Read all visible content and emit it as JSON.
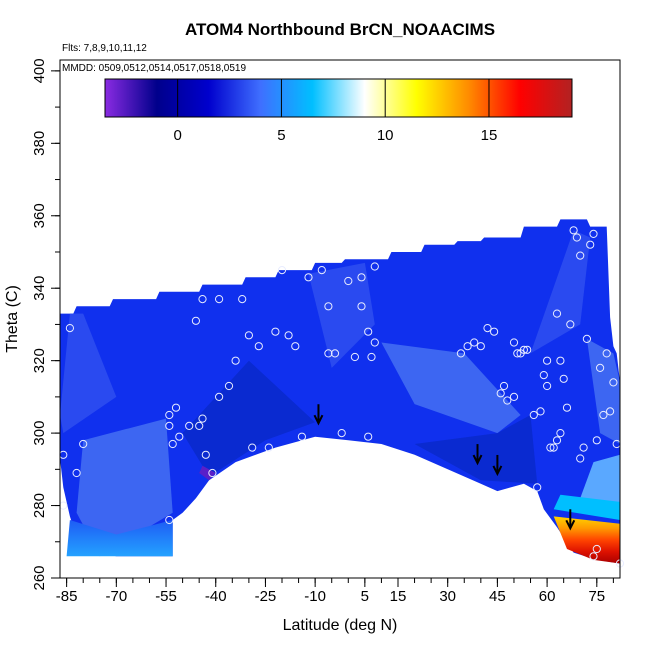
{
  "chart_data": {
    "type": "heatmap",
    "title": "ATOM4 Northbound BrCN_NOAACIMS",
    "subtitle_flights": "Flts: 7,8,9,10,11,12",
    "subtitle_dates": "MMDD: 0509,0512,0514,0517,0518,0519",
    "xlabel": "Latitude (deg N)",
    "ylabel": "Theta (C)",
    "xlim": [
      -87,
      82
    ],
    "ylim": [
      260,
      403
    ],
    "xticks": [
      -85,
      -70,
      -55,
      -40,
      -25,
      -10,
      5,
      15,
      30,
      45,
      60,
      75
    ],
    "yticks": [
      260,
      280,
      300,
      320,
      340,
      360,
      380,
      400
    ],
    "colorbar": {
      "range": [
        -3.5,
        19
      ],
      "ticks": [
        0,
        5,
        10,
        15
      ],
      "colors": [
        "#8a2be2",
        "#00008b",
        "#0000cd",
        "#3f6fff",
        "#00bfff",
        "#ffffff",
        "#ffff00",
        "#ff8c00",
        "#ff0000",
        "#b22222"
      ]
    },
    "field_colors": [
      "#1030ee",
      "#2a4af0",
      "#3d66f2",
      "#0a2ad0",
      "#5aa8ff",
      "#00bfff"
    ],
    "hot_colors": [
      "#ffd400",
      "#ff9a00",
      "#ff4400",
      "#dd1100",
      "#aa0000"
    ],
    "arrows": [
      {
        "lat": -9,
        "theta": 303
      },
      {
        "lat": 39,
        "theta": 292
      },
      {
        "lat": 45,
        "theta": 289
      },
      {
        "lat": 67,
        "theta": 274
      }
    ],
    "points": [
      [
        -86,
        294
      ],
      [
        -86,
        280
      ],
      [
        -84,
        329
      ],
      [
        -82,
        289
      ],
      [
        -80,
        297
      ],
      [
        -54,
        305
      ],
      [
        -52,
        307
      ],
      [
        -54,
        302
      ],
      [
        -53,
        297
      ],
      [
        -51,
        299
      ],
      [
        -54,
        276
      ],
      [
        -48,
        302
      ],
      [
        -45,
        302
      ],
      [
        -44,
        304
      ],
      [
        -41,
        289
      ],
      [
        -46,
        331
      ],
      [
        -44,
        337
      ],
      [
        -39,
        337
      ],
      [
        -34,
        320
      ],
      [
        -32,
        337
      ],
      [
        -30,
        327
      ],
      [
        -27,
        324
      ],
      [
        -29,
        296
      ],
      [
        -24,
        296
      ],
      [
        -22,
        328
      ],
      [
        -18,
        327
      ],
      [
        -20,
        345
      ],
      [
        -16,
        324
      ],
      [
        -14,
        299
      ],
      [
        -12,
        343
      ],
      [
        -8,
        345
      ],
      [
        -6,
        335
      ],
      [
        -6,
        322
      ],
      [
        -4,
        322
      ],
      [
        -2,
        300
      ],
      [
        0,
        342
      ],
      [
        2,
        321
      ],
      [
        4,
        343
      ],
      [
        4,
        335
      ],
      [
        6,
        299
      ],
      [
        6,
        328
      ],
      [
        7,
        321
      ],
      [
        8,
        325
      ],
      [
        8,
        346
      ],
      [
        -36,
        313
      ],
      [
        -39,
        310
      ],
      [
        -43,
        294
      ],
      [
        34,
        322
      ],
      [
        36,
        324
      ],
      [
        38,
        325
      ],
      [
        40,
        324
      ],
      [
        42,
        329
      ],
      [
        44,
        328
      ],
      [
        46,
        311
      ],
      [
        47,
        313
      ],
      [
        48,
        309
      ],
      [
        50,
        310
      ],
      [
        50,
        325
      ],
      [
        51,
        322
      ],
      [
        52,
        322
      ],
      [
        53,
        323
      ],
      [
        54,
        323
      ],
      [
        56,
        305
      ],
      [
        57,
        285
      ],
      [
        58,
        306
      ],
      [
        59,
        316
      ],
      [
        60,
        320
      ],
      [
        60,
        313
      ],
      [
        61,
        296
      ],
      [
        62,
        296
      ],
      [
        63,
        298
      ],
      [
        64,
        300
      ],
      [
        63,
        333
      ],
      [
        64,
        320
      ],
      [
        65,
        315
      ],
      [
        66,
        307
      ],
      [
        67,
        330
      ],
      [
        68,
        356
      ],
      [
        69,
        354
      ],
      [
        70,
        349
      ],
      [
        70,
        293
      ],
      [
        71,
        296
      ],
      [
        72,
        326
      ],
      [
        73,
        352
      ],
      [
        74,
        355
      ],
      [
        75,
        298
      ],
      [
        75,
        268
      ],
      [
        76,
        318
      ],
      [
        77,
        305
      ],
      [
        78,
        322
      ],
      [
        79,
        306
      ],
      [
        80,
        314
      ],
      [
        81,
        297
      ],
      [
        82,
        264
      ],
      [
        74,
        266
      ]
    ]
  }
}
